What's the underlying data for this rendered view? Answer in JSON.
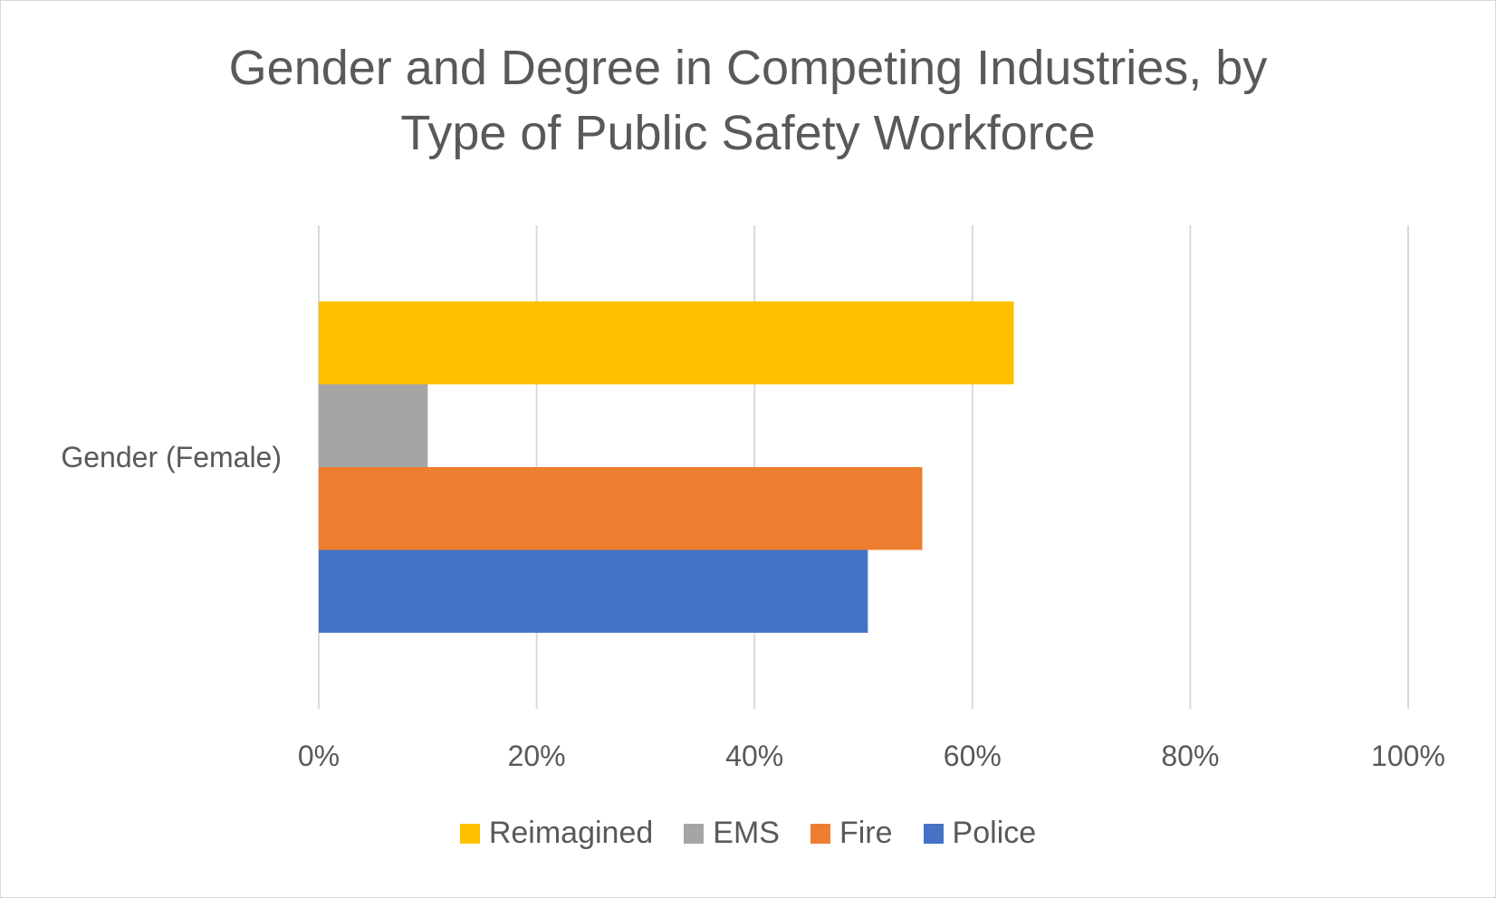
{
  "chart_data": {
    "type": "bar",
    "orientation": "horizontal",
    "title": "Gender and Degree in Competing Industries, by Type of Public Safety Workforce",
    "title_lines": [
      "Gender and Degree in Competing Industries, by",
      "Type of Public Safety Workforce"
    ],
    "categories": [
      "Gender (Female)"
    ],
    "series": [
      {
        "name": "Reimagined",
        "color": "#FFC000",
        "values": [
          63.8
        ]
      },
      {
        "name": "EMS",
        "color": "#A5A5A5",
        "values": [
          10
        ]
      },
      {
        "name": "Fire",
        "color": "#ED7D31",
        "values": [
          55.4
        ]
      },
      {
        "name": "Police",
        "color": "#4472C4",
        "values": [
          50.4
        ]
      }
    ],
    "xlim": [
      0,
      100
    ],
    "x_ticks": [
      0,
      20,
      40,
      60,
      80,
      100
    ],
    "x_tick_labels": [
      "0%",
      "20%",
      "40%",
      "60%",
      "80%",
      "100%"
    ],
    "grid": true,
    "legend_position": "bottom"
  }
}
